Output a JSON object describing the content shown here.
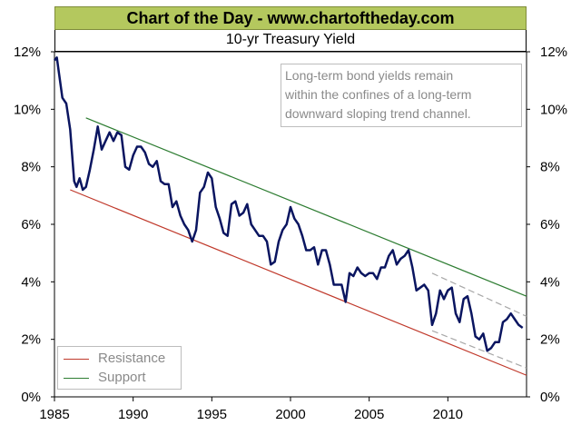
{
  "header": {
    "title": "Chart of the Day - www.chartoftheday.com"
  },
  "chart_data": {
    "type": "line",
    "title": "10-yr Treasury Yield",
    "annotation_lines": [
      "Long-term bond yields remain",
      "within the confines of a long-term",
      "downward sloping trend channel."
    ],
    "xlim": [
      1985,
      2015
    ],
    "ylim": [
      0,
      12
    ],
    "x_ticks": [
      1985,
      1990,
      1995,
      2000,
      2005,
      2010
    ],
    "y_ticks": [
      "0%",
      "2%",
      "4%",
      "6%",
      "8%",
      "10%",
      "12%"
    ],
    "legend": [
      {
        "name": "Resistance",
        "color": "#c0392b"
      },
      {
        "name": "Support",
        "color": "#2e7d32"
      }
    ],
    "colors": {
      "series": "#0a1560",
      "resistance": "#c0392b",
      "support": "#2e7d32",
      "channel_dashed": "#a8a8a8",
      "header_bg": "#b4c85e"
    },
    "series": [
      {
        "x": [
          1985.0,
          1985.15,
          1985.3,
          1985.5,
          1985.75,
          1986.0,
          1986.25,
          1986.4,
          1986.6,
          1986.8,
          1987.0,
          1987.25,
          1987.5,
          1987.75,
          1988.0,
          1988.25,
          1988.5,
          1988.75,
          1989.0,
          1989.25,
          1989.5,
          1989.75,
          1990.0,
          1990.25,
          1990.5,
          1990.75,
          1991.0,
          1991.25,
          1991.5,
          1991.75,
          1992.0,
          1992.25,
          1992.5,
          1992.75,
          1993.0,
          1993.25,
          1993.5,
          1993.75,
          1994.0,
          1994.25,
          1994.5,
          1994.75,
          1995.0,
          1995.25,
          1995.5,
          1995.75,
          1996.0,
          1996.25,
          1996.5,
          1996.75,
          1997.0,
          1997.25,
          1997.5,
          1997.75,
          1998.0,
          1998.25,
          1998.5,
          1998.75,
          1999.0,
          1999.25,
          1999.5,
          1999.75,
          2000.0,
          2000.25,
          2000.5,
          2000.75,
          2001.0,
          2001.25,
          2001.5,
          2001.75,
          2002.0,
          2002.25,
          2002.5,
          2002.75,
          2003.0,
          2003.25,
          2003.5,
          2003.75,
          2004.0,
          2004.25,
          2004.5,
          2004.75,
          2005.0,
          2005.25,
          2005.5,
          2005.75,
          2006.0,
          2006.25,
          2006.5,
          2006.75,
          2007.0,
          2007.25,
          2007.5,
          2007.75,
          2008.0,
          2008.25,
          2008.5,
          2008.75,
          2009.0,
          2009.25,
          2009.5,
          2009.75,
          2010.0,
          2010.25,
          2010.5,
          2010.75,
          2011.0,
          2011.25,
          2011.5,
          2011.75,
          2012.0,
          2012.25,
          2012.5,
          2012.75,
          2013.0,
          2013.25,
          2013.5,
          2013.75,
          2014.0,
          2014.25,
          2014.5,
          2014.75
        ],
        "values": [
          11.7,
          11.8,
          11.2,
          10.4,
          10.2,
          9.3,
          7.5,
          7.3,
          7.6,
          7.2,
          7.3,
          7.9,
          8.6,
          9.4,
          8.6,
          8.9,
          9.2,
          8.9,
          9.2,
          9.1,
          8.0,
          7.9,
          8.4,
          8.7,
          8.7,
          8.5,
          8.1,
          8.0,
          8.2,
          7.5,
          7.4,
          7.4,
          6.6,
          6.8,
          6.3,
          6.0,
          5.8,
          5.4,
          5.8,
          7.1,
          7.3,
          7.8,
          7.6,
          6.6,
          6.2,
          5.7,
          5.6,
          6.7,
          6.8,
          6.3,
          6.4,
          6.7,
          6.0,
          5.8,
          5.6,
          5.6,
          5.4,
          4.6,
          4.7,
          5.4,
          5.8,
          6.0,
          6.6,
          6.2,
          6.0,
          5.6,
          5.1,
          5.1,
          5.2,
          4.6,
          5.1,
          5.1,
          4.6,
          3.9,
          3.9,
          3.9,
          3.3,
          4.3,
          4.2,
          4.5,
          4.3,
          4.2,
          4.3,
          4.3,
          4.1,
          4.5,
          4.5,
          4.9,
          5.1,
          4.6,
          4.8,
          4.9,
          5.1,
          4.5,
          3.7,
          3.8,
          3.9,
          3.7,
          2.5,
          2.9,
          3.7,
          3.4,
          3.7,
          3.8,
          2.9,
          2.6,
          3.4,
          3.5,
          2.9,
          2.1,
          2.0,
          2.2,
          1.6,
          1.7,
          1.9,
          1.9,
          2.6,
          2.7,
          2.9,
          2.7,
          2.5,
          2.4
        ]
      }
    ],
    "channel_lines": {
      "resistance": {
        "x": [
          1986.0,
          2015.0
        ],
        "y": [
          7.2,
          0.75
        ]
      },
      "support": {
        "x": [
          1987.0,
          2015.0
        ],
        "y": [
          9.7,
          3.5
        ]
      },
      "dashed_upper": {
        "x": [
          2009.0,
          2015.0
        ],
        "y": [
          4.3,
          2.8
        ]
      },
      "dashed_lower": {
        "x": [
          2009.0,
          2015.0
        ],
        "y": [
          2.3,
          1.0
        ]
      }
    }
  }
}
